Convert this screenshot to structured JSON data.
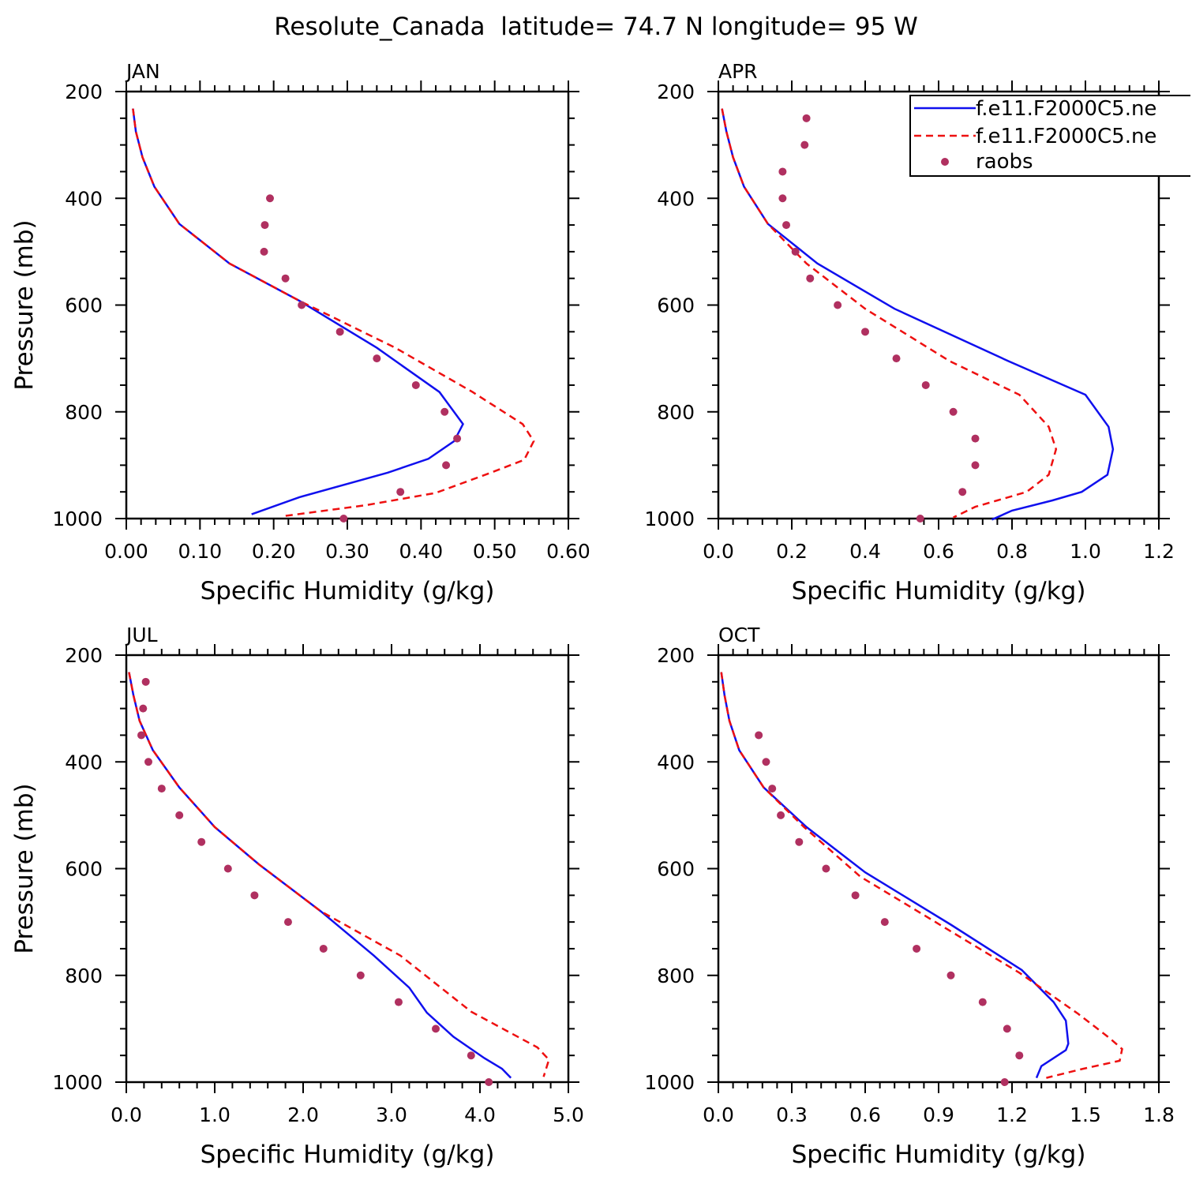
{
  "title": "Resolute_Canada  latitude= 74.7 N longitude= 95 W",
  "legend": {
    "entries": [
      {
        "label": "f.e11.F2000C5.ne",
        "style": "solid",
        "color": "#1010ee"
      },
      {
        "label": "f.e11.F2000C5.ne",
        "style": "dashed",
        "color": "#ee1010"
      },
      {
        "label": "raobs",
        "style": "marker",
        "color": "#b03060"
      }
    ]
  },
  "chart_data": [
    {
      "type": "line",
      "panel_label": "JAN",
      "xlabel": "Specific Humidity (g/kg)",
      "ylabel": "Pressure (mb)",
      "xlim": [
        0,
        0.6
      ],
      "ylim": [
        200,
        1000
      ],
      "y_inverted": true,
      "xticks": [
        "0.00",
        "0.10",
        "0.20",
        "0.30",
        "0.40",
        "0.50",
        "0.60"
      ],
      "yticks": [
        "200",
        "400",
        "600",
        "800",
        "1000"
      ],
      "series": [
        {
          "style": "solid",
          "color": "#1010ee",
          "x": [
            0.009,
            0.013,
            0.022,
            0.038,
            0.072,
            0.14,
            0.235,
            0.34,
            0.425,
            0.457,
            0.445,
            0.41,
            0.355,
            0.235,
            0.17
          ],
          "y": [
            232,
            275,
            323,
            378,
            448,
            522,
            592,
            680,
            763,
            823,
            855,
            888,
            914,
            960,
            992
          ]
        },
        {
          "style": "dashed",
          "color": "#ee1010",
          "x": [
            0.009,
            0.013,
            0.022,
            0.038,
            0.072,
            0.14,
            0.235,
            0.365,
            0.47,
            0.538,
            0.553,
            0.54,
            0.495,
            0.42,
            0.325,
            0.21
          ],
          "y": [
            232,
            275,
            323,
            378,
            448,
            522,
            592,
            680,
            763,
            823,
            855,
            890,
            914,
            952,
            975,
            996
          ]
        }
      ],
      "observations": {
        "x": [
          0.195,
          0.188,
          0.187,
          0.216,
          0.238,
          0.29,
          0.34,
          0.393,
          0.432,
          0.449,
          0.434,
          0.372,
          0.295
        ],
        "y": [
          400,
          450,
          500,
          550,
          600,
          650,
          700,
          750,
          800,
          850,
          900,
          950,
          1000
        ]
      }
    },
    {
      "type": "line",
      "panel_label": "APR",
      "xlabel": "Specific Humidity (g/kg)",
      "ylabel": "",
      "xlim": [
        0,
        1.2
      ],
      "ylim": [
        200,
        1000
      ],
      "y_inverted": true,
      "xticks": [
        "0.0",
        "0.2",
        "0.4",
        "0.6",
        "0.8",
        "1.0",
        "1.2"
      ],
      "yticks": [
        "200",
        "400",
        "600",
        "800",
        "1000"
      ],
      "series": [
        {
          "style": "solid",
          "color": "#1010ee",
          "x": [
            0.01,
            0.022,
            0.04,
            0.07,
            0.135,
            0.27,
            0.48,
            0.79,
            1.0,
            1.063,
            1.075,
            1.06,
            0.99,
            0.91,
            0.8,
            0.745
          ],
          "y": [
            232,
            275,
            323,
            378,
            448,
            522,
            607,
            705,
            768,
            828,
            870,
            918,
            950,
            966,
            985,
            1002
          ]
        },
        {
          "style": "dashed",
          "color": "#ee1010",
          "x": [
            0.01,
            0.022,
            0.04,
            0.07,
            0.135,
            0.24,
            0.4,
            0.63,
            0.82,
            0.9,
            0.92,
            0.9,
            0.84,
            0.76,
            0.7,
            0.64
          ],
          "y": [
            232,
            275,
            323,
            378,
            448,
            522,
            607,
            705,
            768,
            828,
            870,
            918,
            950,
            966,
            978,
            998
          ]
        }
      ],
      "observations": {
        "x": [
          0.24,
          0.235,
          0.175,
          0.175,
          0.185,
          0.21,
          0.25,
          0.325,
          0.4,
          0.485,
          0.565,
          0.64,
          0.7,
          0.7,
          0.665,
          0.55
        ],
        "y": [
          250,
          300,
          350,
          400,
          450,
          500,
          550,
          600,
          650,
          700,
          750,
          800,
          850,
          900,
          950,
          1000
        ]
      }
    },
    {
      "type": "line",
      "panel_label": "JUL",
      "xlabel": "Specific Humidity (g/kg)",
      "ylabel": "Pressure (mb)",
      "xlim": [
        0,
        5.0
      ],
      "ylim": [
        200,
        1000
      ],
      "y_inverted": true,
      "xticks": [
        "0.0",
        "1.0",
        "2.0",
        "3.0",
        "4.0",
        "5.0"
      ],
      "yticks": [
        "200",
        "400",
        "600",
        "800",
        "1000"
      ],
      "series": [
        {
          "style": "solid",
          "color": "#1010ee",
          "x": [
            0.03,
            0.08,
            0.15,
            0.3,
            0.6,
            1.0,
            1.5,
            2.2,
            2.8,
            3.2,
            3.4,
            3.7,
            4.05,
            4.25,
            4.35
          ],
          "y": [
            232,
            275,
            323,
            378,
            448,
            522,
            592,
            680,
            763,
            823,
            870,
            915,
            955,
            975,
            992
          ]
        },
        {
          "style": "dashed",
          "color": "#ee1010",
          "x": [
            0.03,
            0.08,
            0.15,
            0.3,
            0.6,
            1.0,
            1.5,
            2.2,
            3.1,
            3.9,
            4.65,
            4.78,
            4.72
          ],
          "y": [
            232,
            275,
            323,
            378,
            448,
            522,
            592,
            680,
            763,
            868,
            935,
            958,
            990
          ]
        }
      ],
      "observations": {
        "x": [
          0.22,
          0.19,
          0.17,
          0.25,
          0.4,
          0.6,
          0.85,
          1.15,
          1.45,
          1.83,
          2.23,
          2.65,
          3.08,
          3.5,
          3.9,
          4.1
        ],
        "y": [
          250,
          300,
          350,
          400,
          450,
          500,
          550,
          600,
          650,
          700,
          750,
          800,
          850,
          900,
          950,
          1000
        ]
      }
    },
    {
      "type": "line",
      "panel_label": "OCT",
      "xlabel": "Specific Humidity (g/kg)",
      "ylabel": "",
      "xlim": [
        0,
        1.8
      ],
      "ylim": [
        200,
        1000
      ],
      "y_inverted": true,
      "xticks": [
        "0.0",
        "0.3",
        "0.6",
        "0.9",
        "1.2",
        "1.5",
        "1.8"
      ],
      "yticks": [
        "200",
        "400",
        "600",
        "800",
        "1000"
      ],
      "series": [
        {
          "style": "solid",
          "color": "#1010ee",
          "x": [
            0.012,
            0.025,
            0.045,
            0.085,
            0.185,
            0.36,
            0.6,
            0.95,
            1.24,
            1.37,
            1.42,
            1.43,
            1.42,
            1.32,
            1.3
          ],
          "y": [
            232,
            275,
            323,
            378,
            448,
            522,
            607,
            705,
            790,
            850,
            885,
            928,
            940,
            970,
            992
          ]
        },
        {
          "style": "dashed",
          "color": "#ee1010",
          "x": [
            0.012,
            0.025,
            0.045,
            0.085,
            0.185,
            0.35,
            0.58,
            0.93,
            1.23,
            1.47,
            1.6,
            1.65,
            1.64,
            1.49,
            1.34
          ],
          "y": [
            232,
            275,
            323,
            378,
            448,
            522,
            615,
            712,
            795,
            872,
            918,
            938,
            960,
            975,
            992
          ]
        }
      ],
      "observations": {
        "x": [
          0.165,
          0.195,
          0.22,
          0.255,
          0.33,
          0.44,
          0.56,
          0.68,
          0.81,
          0.95,
          1.08,
          1.18,
          1.23,
          1.17
        ],
        "y": [
          350,
          400,
          450,
          500,
          550,
          600,
          650,
          700,
          750,
          800,
          850,
          900,
          950,
          1000
        ]
      }
    }
  ]
}
